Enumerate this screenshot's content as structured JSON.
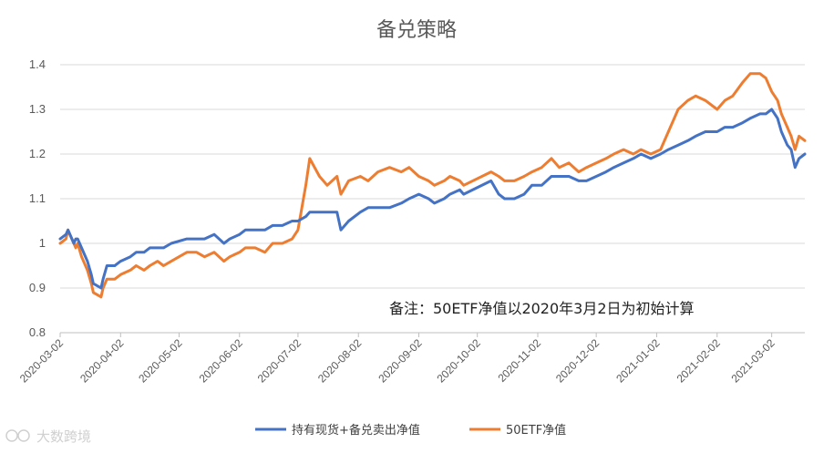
{
  "chart_data": {
    "type": "line",
    "title": "备兑策略",
    "ylim": [
      0.8,
      1.4
    ],
    "y_ticks": [
      "0.8",
      "0.9",
      "1",
      "1.1",
      "1.2",
      "1.3",
      "1.4"
    ],
    "x_tick_labels": [
      "2020-03-02",
      "2020-04-02",
      "2020-05-02",
      "2020-06-02",
      "2020-07-02",
      "2020-08-02",
      "2020-09-02",
      "2020-10-02",
      "2020-11-02",
      "2020-12-02",
      "2021-01-02",
      "2021-02-02",
      "2021-03-02"
    ],
    "x_range": [
      "2020-03-02",
      "2021-03-19"
    ],
    "grid": "horizontal",
    "legend_position": "bottom",
    "annotation": "备注：50ETF净值以2020年3月2日为初始计算",
    "series": [
      {
        "name": "持有现货+备兑卖出净值",
        "color": "#4472C4",
        "points": [
          [
            "2020-03-02",
            1.01
          ],
          [
            "2020-03-05",
            1.02
          ],
          [
            "2020-03-06",
            1.03
          ],
          [
            "2020-03-09",
            1.0
          ],
          [
            "2020-03-10",
            1.01
          ],
          [
            "2020-03-11",
            1.01
          ],
          [
            "2020-03-13",
            0.99
          ],
          [
            "2020-03-16",
            0.96
          ],
          [
            "2020-03-18",
            0.93
          ],
          [
            "2020-03-19",
            0.91
          ],
          [
            "2020-03-23",
            0.9
          ],
          [
            "2020-03-24",
            0.92
          ],
          [
            "2020-03-26",
            0.95
          ],
          [
            "2020-03-30",
            0.95
          ],
          [
            "2020-04-02",
            0.96
          ],
          [
            "2020-04-07",
            0.97
          ],
          [
            "2020-04-10",
            0.98
          ],
          [
            "2020-04-14",
            0.98
          ],
          [
            "2020-04-17",
            0.99
          ],
          [
            "2020-04-21",
            0.99
          ],
          [
            "2020-04-24",
            0.99
          ],
          [
            "2020-04-28",
            1.0
          ],
          [
            "2020-05-06",
            1.01
          ],
          [
            "2020-05-11",
            1.01
          ],
          [
            "2020-05-15",
            1.01
          ],
          [
            "2020-05-20",
            1.02
          ],
          [
            "2020-05-25",
            1.0
          ],
          [
            "2020-05-28",
            1.01
          ],
          [
            "2020-06-02",
            1.02
          ],
          [
            "2020-06-05",
            1.03
          ],
          [
            "2020-06-10",
            1.03
          ],
          [
            "2020-06-15",
            1.03
          ],
          [
            "2020-06-19",
            1.04
          ],
          [
            "2020-06-24",
            1.04
          ],
          [
            "2020-06-29",
            1.05
          ],
          [
            "2020-07-02",
            1.05
          ],
          [
            "2020-07-06",
            1.06
          ],
          [
            "2020-07-08",
            1.07
          ],
          [
            "2020-07-13",
            1.07
          ],
          [
            "2020-07-17",
            1.07
          ],
          [
            "2020-07-22",
            1.07
          ],
          [
            "2020-07-24",
            1.03
          ],
          [
            "2020-07-28",
            1.05
          ],
          [
            "2020-08-03",
            1.07
          ],
          [
            "2020-08-07",
            1.08
          ],
          [
            "2020-08-12",
            1.08
          ],
          [
            "2020-08-18",
            1.08
          ],
          [
            "2020-08-24",
            1.09
          ],
          [
            "2020-08-28",
            1.1
          ],
          [
            "2020-09-02",
            1.11
          ],
          [
            "2020-09-07",
            1.1
          ],
          [
            "2020-09-10",
            1.09
          ],
          [
            "2020-09-15",
            1.1
          ],
          [
            "2020-09-18",
            1.11
          ],
          [
            "2020-09-23",
            1.12
          ],
          [
            "2020-09-25",
            1.11
          ],
          [
            "2020-10-09",
            1.14
          ],
          [
            "2020-10-13",
            1.11
          ],
          [
            "2020-10-16",
            1.1
          ],
          [
            "2020-10-21",
            1.1
          ],
          [
            "2020-10-26",
            1.11
          ],
          [
            "2020-10-30",
            1.13
          ],
          [
            "2020-11-04",
            1.13
          ],
          [
            "2020-11-09",
            1.15
          ],
          [
            "2020-11-13",
            1.15
          ],
          [
            "2020-11-18",
            1.15
          ],
          [
            "2020-11-23",
            1.14
          ],
          [
            "2020-11-27",
            1.14
          ],
          [
            "2020-12-02",
            1.15
          ],
          [
            "2020-12-07",
            1.16
          ],
          [
            "2020-12-11",
            1.17
          ],
          [
            "2020-12-16",
            1.18
          ],
          [
            "2020-12-21",
            1.19
          ],
          [
            "2020-12-25",
            1.2
          ],
          [
            "2020-12-30",
            1.19
          ],
          [
            "2021-01-04",
            1.2
          ],
          [
            "2021-01-08",
            1.21
          ],
          [
            "2021-01-13",
            1.22
          ],
          [
            "2021-01-18",
            1.23
          ],
          [
            "2021-01-22",
            1.24
          ],
          [
            "2021-01-27",
            1.25
          ],
          [
            "2021-02-02",
            1.25
          ],
          [
            "2021-02-06",
            1.26
          ],
          [
            "2021-02-10",
            1.26
          ],
          [
            "2021-02-15",
            1.27
          ],
          [
            "2021-02-19",
            1.28
          ],
          [
            "2021-02-24",
            1.29
          ],
          [
            "2021-02-27",
            1.29
          ],
          [
            "2021-03-02",
            1.3
          ],
          [
            "2021-03-05",
            1.28
          ],
          [
            "2021-03-07",
            1.25
          ],
          [
            "2021-03-10",
            1.22
          ],
          [
            "2021-03-12",
            1.21
          ],
          [
            "2021-03-14",
            1.17
          ],
          [
            "2021-03-16",
            1.19
          ],
          [
            "2021-03-19",
            1.2
          ]
        ]
      },
      {
        "name": "50ETF净值",
        "color": "#ED7D31",
        "points": [
          [
            "2020-03-02",
            1.0
          ],
          [
            "2020-03-05",
            1.01
          ],
          [
            "2020-03-06",
            1.03
          ],
          [
            "2020-03-09",
            1.0
          ],
          [
            "2020-03-10",
            0.99
          ],
          [
            "2020-03-11",
            1.0
          ],
          [
            "2020-03-13",
            0.97
          ],
          [
            "2020-03-16",
            0.94
          ],
          [
            "2020-03-18",
            0.91
          ],
          [
            "2020-03-19",
            0.89
          ],
          [
            "2020-03-23",
            0.88
          ],
          [
            "2020-03-24",
            0.9
          ],
          [
            "2020-03-26",
            0.92
          ],
          [
            "2020-03-30",
            0.92
          ],
          [
            "2020-04-02",
            0.93
          ],
          [
            "2020-04-07",
            0.94
          ],
          [
            "2020-04-10",
            0.95
          ],
          [
            "2020-04-14",
            0.94
          ],
          [
            "2020-04-17",
            0.95
          ],
          [
            "2020-04-21",
            0.96
          ],
          [
            "2020-04-24",
            0.95
          ],
          [
            "2020-04-28",
            0.96
          ],
          [
            "2020-05-06",
            0.98
          ],
          [
            "2020-05-11",
            0.98
          ],
          [
            "2020-05-15",
            0.97
          ],
          [
            "2020-05-20",
            0.98
          ],
          [
            "2020-05-25",
            0.96
          ],
          [
            "2020-05-28",
            0.97
          ],
          [
            "2020-06-02",
            0.98
          ],
          [
            "2020-06-05",
            0.99
          ],
          [
            "2020-06-10",
            0.99
          ],
          [
            "2020-06-15",
            0.98
          ],
          [
            "2020-06-19",
            1.0
          ],
          [
            "2020-06-24",
            1.0
          ],
          [
            "2020-06-29",
            1.01
          ],
          [
            "2020-07-02",
            1.03
          ],
          [
            "2020-07-06",
            1.13
          ],
          [
            "2020-07-08",
            1.19
          ],
          [
            "2020-07-13",
            1.15
          ],
          [
            "2020-07-17",
            1.13
          ],
          [
            "2020-07-22",
            1.15
          ],
          [
            "2020-07-24",
            1.11
          ],
          [
            "2020-07-28",
            1.14
          ],
          [
            "2020-08-03",
            1.15
          ],
          [
            "2020-08-07",
            1.14
          ],
          [
            "2020-08-12",
            1.16
          ],
          [
            "2020-08-18",
            1.17
          ],
          [
            "2020-08-24",
            1.16
          ],
          [
            "2020-08-28",
            1.17
          ],
          [
            "2020-09-02",
            1.15
          ],
          [
            "2020-09-07",
            1.14
          ],
          [
            "2020-09-10",
            1.13
          ],
          [
            "2020-09-15",
            1.14
          ],
          [
            "2020-09-18",
            1.15
          ],
          [
            "2020-09-23",
            1.14
          ],
          [
            "2020-09-25",
            1.13
          ],
          [
            "2020-10-09",
            1.16
          ],
          [
            "2020-10-13",
            1.15
          ],
          [
            "2020-10-16",
            1.14
          ],
          [
            "2020-10-21",
            1.14
          ],
          [
            "2020-10-26",
            1.15
          ],
          [
            "2020-10-30",
            1.16
          ],
          [
            "2020-11-04",
            1.17
          ],
          [
            "2020-11-09",
            1.19
          ],
          [
            "2020-11-13",
            1.17
          ],
          [
            "2020-11-18",
            1.18
          ],
          [
            "2020-11-23",
            1.16
          ],
          [
            "2020-11-27",
            1.17
          ],
          [
            "2020-12-02",
            1.18
          ],
          [
            "2020-12-07",
            1.19
          ],
          [
            "2020-12-11",
            1.2
          ],
          [
            "2020-12-16",
            1.21
          ],
          [
            "2020-12-21",
            1.2
          ],
          [
            "2020-12-25",
            1.21
          ],
          [
            "2020-12-30",
            1.2
          ],
          [
            "2021-01-04",
            1.21
          ],
          [
            "2021-01-08",
            1.25
          ],
          [
            "2021-01-13",
            1.3
          ],
          [
            "2021-01-18",
            1.32
          ],
          [
            "2021-01-22",
            1.33
          ],
          [
            "2021-01-27",
            1.32
          ],
          [
            "2021-02-02",
            1.3
          ],
          [
            "2021-02-06",
            1.32
          ],
          [
            "2021-02-10",
            1.33
          ],
          [
            "2021-02-15",
            1.36
          ],
          [
            "2021-02-19",
            1.38
          ],
          [
            "2021-02-24",
            1.38
          ],
          [
            "2021-02-27",
            1.37
          ],
          [
            "2021-03-02",
            1.34
          ],
          [
            "2021-03-05",
            1.32
          ],
          [
            "2021-03-07",
            1.29
          ],
          [
            "2021-03-10",
            1.26
          ],
          [
            "2021-03-12",
            1.24
          ],
          [
            "2021-03-14",
            1.21
          ],
          [
            "2021-03-16",
            1.24
          ],
          [
            "2021-03-19",
            1.23
          ]
        ]
      }
    ]
  },
  "watermark": {
    "text": "大数跨境"
  }
}
